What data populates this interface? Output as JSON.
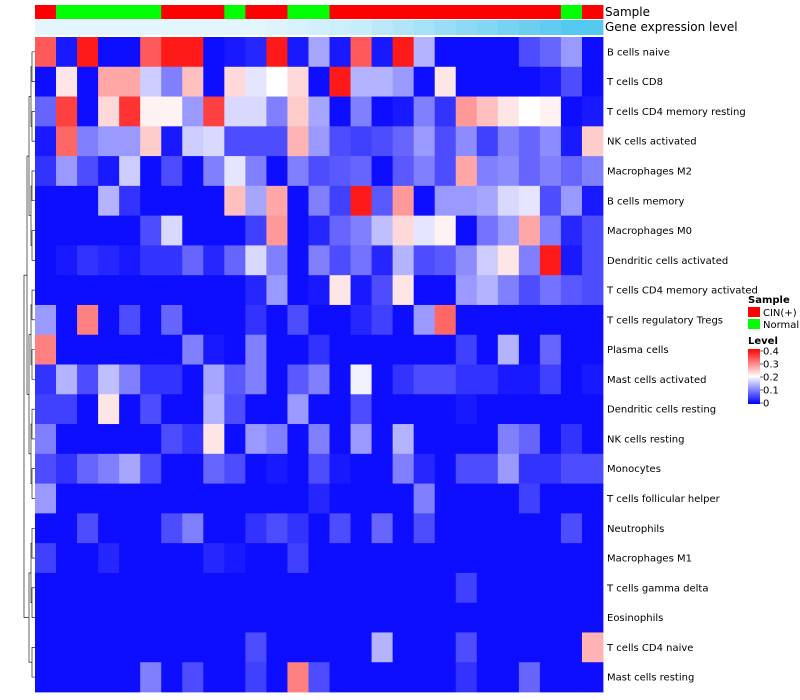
{
  "chart_data": {
    "type": "heatmap",
    "title": "",
    "annotation_labels": {
      "sample": "Sample",
      "gene": "Gene expression level"
    },
    "legend": {
      "sample_title": "Sample",
      "sample_entries": [
        {
          "label": "CIN(+)",
          "color": "#ff0000"
        },
        {
          "label": "Normal",
          "color": "#00ff00"
        }
      ],
      "level_title": "Level",
      "level_ticks": [
        "0.4",
        "0.3",
        "0.2",
        "0.1",
        "0"
      ],
      "level_tick_values": [
        0.4,
        0.3,
        0.2,
        0.1,
        0
      ],
      "placement": "right"
    },
    "color_scale": {
      "min": 0,
      "mid": 0.2,
      "max": 0.4,
      "low": "#0000ff",
      "midcolor": "#ffffff",
      "high": "#ff0000"
    },
    "gene_bar_color": "#55c8f0",
    "sample_groups": [
      "CIN(+)",
      "Normal",
      "Normal",
      "Normal",
      "Normal",
      "Normal",
      "CIN(+)",
      "CIN(+)",
      "CIN(+)",
      "Normal",
      "CIN(+)",
      "CIN(+)",
      "Normal",
      "Normal",
      "CIN(+)",
      "CIN(+)",
      "CIN(+)",
      "CIN(+)",
      "CIN(+)",
      "CIN(+)",
      "CIN(+)",
      "CIN(+)",
      "CIN(+)",
      "CIN(+)",
      "CIN(+)",
      "Normal",
      "CIN(+)"
    ],
    "gene_level": [
      0.05,
      0.05,
      0.05,
      0.05,
      0.05,
      0.05,
      0.05,
      0.05,
      0.05,
      0.05,
      0.05,
      0.06,
      0.07,
      0.08,
      0.09,
      0.1,
      0.12,
      0.14,
      0.16,
      0.18,
      0.2,
      0.22,
      0.24,
      0.26,
      0.28,
      0.3,
      0.32
    ],
    "rows": [
      "B cells naive",
      "T cells CD8",
      "T cells CD4 memory resting",
      "NK cells activated",
      "Macrophages M2",
      "B cells memory",
      "Macrophages M0",
      "Dendritic cells activated",
      "T cells CD4 memory activated",
      "T cells regulatory  Tregs",
      "Plasma cells",
      "Mast cells activated",
      "Dendritic cells resting",
      "NK cells resting",
      "Monocytes",
      "T cells follicular helper",
      "Neutrophils",
      "Macrophages M1",
      "T cells gamma delta",
      "Eosinophils",
      "T cells CD4 naive",
      "Mast cells resting"
    ],
    "values": [
      [
        0.33,
        0.02,
        0.38,
        0.01,
        0.01,
        0.33,
        0.38,
        0.38,
        0.01,
        0.02,
        0.03,
        0.38,
        0.02,
        0.13,
        0.02,
        0.33,
        0.02,
        0.38,
        0.14,
        0.01,
        0.01,
        0.01,
        0.01,
        0.06,
        0.08,
        0.12,
        0.01
      ],
      [
        0.01,
        0.22,
        0.01,
        0.27,
        0.27,
        0.16,
        0.1,
        0.25,
        0.01,
        0.23,
        0.18,
        0.2,
        0.23,
        0.01,
        0.38,
        0.14,
        0.14,
        0.12,
        0.01,
        0.22,
        0.01,
        0.01,
        0.01,
        0.01,
        0.02,
        0.06,
        0.01
      ],
      [
        0.08,
        0.35,
        0.01,
        0.23,
        0.36,
        0.21,
        0.21,
        0.12,
        0.35,
        0.17,
        0.17,
        0.1,
        0.24,
        0.13,
        0.01,
        0.1,
        0.01,
        0.02,
        0.1,
        0.04,
        0.28,
        0.25,
        0.22,
        0.2,
        0.21,
        0.01,
        0.02
      ],
      [
        0.02,
        0.32,
        0.1,
        0.12,
        0.12,
        0.24,
        0.02,
        0.16,
        0.17,
        0.06,
        0.06,
        0.06,
        0.26,
        0.12,
        0.06,
        0.05,
        0.06,
        0.08,
        0.12,
        0.06,
        0.11,
        0.05,
        0.1,
        0.08,
        0.11,
        0.02,
        0.24
      ],
      [
        0.04,
        0.12,
        0.06,
        0.02,
        0.16,
        0.01,
        0.06,
        0.01,
        0.1,
        0.18,
        0.1,
        0.01,
        0.1,
        0.06,
        0.07,
        0.08,
        0.01,
        0.07,
        0.1,
        0.06,
        0.27,
        0.1,
        0.11,
        0.08,
        0.1,
        0.08,
        0.1
      ],
      [
        0.01,
        0.01,
        0.01,
        0.14,
        0.04,
        0.01,
        0.01,
        0.01,
        0.01,
        0.25,
        0.13,
        0.27,
        0.01,
        0.1,
        0.05,
        0.38,
        0.07,
        0.28,
        0.01,
        0.12,
        0.12,
        0.13,
        0.17,
        0.18,
        0.06,
        0.12,
        0.02
      ],
      [
        0.01,
        0.01,
        0.01,
        0.01,
        0.01,
        0.06,
        0.17,
        0.01,
        0.01,
        0.01,
        0.05,
        0.28,
        0.01,
        0.03,
        0.08,
        0.1,
        0.15,
        0.23,
        0.18,
        0.21,
        0.01,
        0.09,
        0.12,
        0.27,
        0.1,
        0.03,
        0.06
      ],
      [
        0.01,
        0.02,
        0.04,
        0.03,
        0.02,
        0.04,
        0.04,
        0.08,
        0.03,
        0.08,
        0.17,
        0.1,
        0.01,
        0.1,
        0.06,
        0.09,
        0.03,
        0.14,
        0.06,
        0.07,
        0.11,
        0.16,
        0.22,
        0.1,
        0.38,
        0.02,
        0.06
      ],
      [
        0.01,
        0.01,
        0.01,
        0.01,
        0.01,
        0.01,
        0.01,
        0.01,
        0.01,
        0.01,
        0.03,
        0.12,
        0.01,
        0.02,
        0.22,
        0.02,
        0.06,
        0.22,
        0.01,
        0.01,
        0.12,
        0.14,
        0.1,
        0.06,
        0.09,
        0.07,
        0.06
      ],
      [
        0.12,
        0.01,
        0.3,
        0.01,
        0.06,
        0.01,
        0.08,
        0.01,
        0.01,
        0.01,
        0.04,
        0.01,
        0.06,
        0.01,
        0.01,
        0.03,
        0.05,
        0.01,
        0.12,
        0.32,
        0.01,
        0.01,
        0.01,
        0.01,
        0.01,
        0.01,
        0.01
      ],
      [
        0.3,
        0.01,
        0.01,
        0.01,
        0.01,
        0.01,
        0.01,
        0.1,
        0.02,
        0.01,
        0.1,
        0.01,
        0.01,
        0.04,
        0.01,
        0.01,
        0.01,
        0.01,
        0.01,
        0.01,
        0.05,
        0.01,
        0.14,
        0.01,
        0.08,
        0.01,
        0.01
      ],
      [
        0.04,
        0.14,
        0.06,
        0.15,
        0.1,
        0.04,
        0.04,
        0.01,
        0.13,
        0.07,
        0.1,
        0.01,
        0.07,
        0.1,
        0.01,
        0.19,
        0.01,
        0.04,
        0.06,
        0.06,
        0.04,
        0.04,
        0.02,
        0.02,
        0.05,
        0.01,
        0.02
      ],
      [
        0.05,
        0.05,
        0.01,
        0.22,
        0.01,
        0.06,
        0.01,
        0.01,
        0.14,
        0.06,
        0.01,
        0.01,
        0.12,
        0.01,
        0.01,
        0.06,
        0.01,
        0.01,
        0.01,
        0.01,
        0.02,
        0.01,
        0.01,
        0.01,
        0.01,
        0.01,
        0.01
      ],
      [
        0.1,
        0.01,
        0.01,
        0.01,
        0.01,
        0.01,
        0.06,
        0.04,
        0.22,
        0.01,
        0.12,
        0.1,
        0.01,
        0.1,
        0.01,
        0.12,
        0.01,
        0.14,
        0.01,
        0.01,
        0.01,
        0.01,
        0.1,
        0.08,
        0.01,
        0.04,
        0.01
      ],
      [
        0.06,
        0.04,
        0.08,
        0.1,
        0.13,
        0.06,
        0.01,
        0.01,
        0.08,
        0.06,
        0.01,
        0.02,
        0.01,
        0.06,
        0.02,
        0.01,
        0.01,
        0.1,
        0.03,
        0.01,
        0.06,
        0.06,
        0.12,
        0.04,
        0.04,
        0.06,
        0.06
      ],
      [
        0.12,
        0.01,
        0.01,
        0.01,
        0.01,
        0.01,
        0.01,
        0.01,
        0.01,
        0.01,
        0.01,
        0.01,
        0.01,
        0.03,
        0.01,
        0.01,
        0.01,
        0.01,
        0.1,
        0.01,
        0.01,
        0.01,
        0.01,
        0.05,
        0.01,
        0.01,
        0.01
      ],
      [
        0.01,
        0.01,
        0.06,
        0.01,
        0.01,
        0.01,
        0.06,
        0.1,
        0.01,
        0.01,
        0.04,
        0.06,
        0.04,
        0.01,
        0.06,
        0.01,
        0.08,
        0.01,
        0.06,
        0.01,
        0.01,
        0.01,
        0.01,
        0.01,
        0.01,
        0.06,
        0.01
      ],
      [
        0.05,
        0.01,
        0.01,
        0.03,
        0.01,
        0.01,
        0.01,
        0.01,
        0.03,
        0.02,
        0.01,
        0.01,
        0.05,
        0.01,
        0.01,
        0.01,
        0.01,
        0.01,
        0.01,
        0.01,
        0.01,
        0.01,
        0.01,
        0.01,
        0.01,
        0.01,
        0.01
      ],
      [
        0.01,
        0.01,
        0.01,
        0.01,
        0.01,
        0.01,
        0.01,
        0.01,
        0.01,
        0.01,
        0.01,
        0.01,
        0.01,
        0.01,
        0.01,
        0.01,
        0.01,
        0.01,
        0.01,
        0.01,
        0.05,
        0.01,
        0.01,
        0.01,
        0.01,
        0.01,
        0.01
      ],
      [
        0.01,
        0.01,
        0.01,
        0.01,
        0.01,
        0.01,
        0.01,
        0.01,
        0.01,
        0.01,
        0.01,
        0.01,
        0.01,
        0.01,
        0.01,
        0.01,
        0.01,
        0.01,
        0.01,
        0.01,
        0.01,
        0.01,
        0.01,
        0.01,
        0.01,
        0.01,
        0.01
      ],
      [
        0.01,
        0.01,
        0.01,
        0.01,
        0.01,
        0.01,
        0.01,
        0.01,
        0.01,
        0.01,
        0.06,
        0.01,
        0.01,
        0.01,
        0.01,
        0.01,
        0.14,
        0.01,
        0.01,
        0.01,
        0.06,
        0.01,
        0.01,
        0.01,
        0.01,
        0.01,
        0.26
      ],
      [
        0.01,
        0.01,
        0.01,
        0.01,
        0.01,
        0.1,
        0.01,
        0.06,
        0.01,
        0.01,
        0.05,
        0.01,
        0.3,
        0.06,
        0.01,
        0.01,
        0.01,
        0.01,
        0.01,
        0.01,
        0.04,
        0.01,
        0.01,
        0.08,
        0.01,
        0.01,
        0.01
      ]
    ]
  }
}
